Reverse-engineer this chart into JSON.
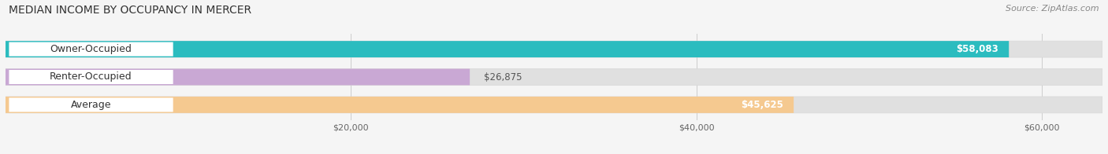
{
  "title": "MEDIAN INCOME BY OCCUPANCY IN MERCER",
  "source": "Source: ZipAtlas.com",
  "categories": [
    "Owner-Occupied",
    "Renter-Occupied",
    "Average"
  ],
  "values": [
    58083,
    26875,
    45625
  ],
  "bar_colors": [
    "#2bbcbf",
    "#c9a8d4",
    "#f5c990"
  ],
  "bar_bg_color": "#e0e0e0",
  "label_bg_color": "#ffffff",
  "value_labels": [
    "$58,083",
    "$26,875",
    "$45,625"
  ],
  "xmax": 63500,
  "bar_bg_max": 63500,
  "xticks": [
    20000,
    40000,
    60000
  ],
  "xtick_labels": [
    "$20,000",
    "$40,000",
    "$60,000"
  ],
  "title_fontsize": 10,
  "source_fontsize": 8,
  "label_fontsize": 9,
  "value_fontsize": 8.5,
  "background_color": "#f5f5f5",
  "grid_color": "#cccccc"
}
